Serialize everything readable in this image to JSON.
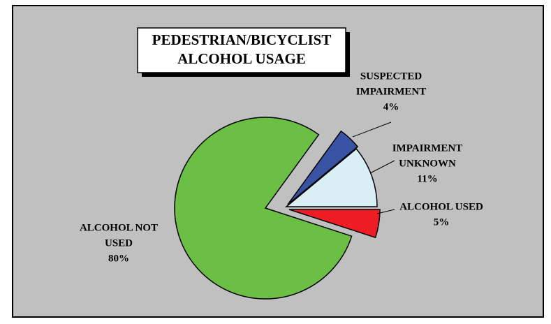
{
  "chart_data": {
    "type": "pie",
    "title": [
      "PEDESTRIAN/BICYCLIST",
      "ALCOHOL USAGE"
    ],
    "categories": [
      [
        "ALCOHOL USED"
      ],
      [
        "ALCOHOL NOT",
        "USED"
      ],
      [
        "SUSPECTED",
        "IMPAIRMENT"
      ],
      [
        "IMPAIRMENT",
        "UNKNOWN"
      ]
    ],
    "values": [
      5,
      80,
      4,
      11
    ],
    "value_labels": [
      "5%",
      "80%",
      "4%",
      "11%"
    ],
    "colors": [
      "#ee1c24",
      "#6cbf45",
      "#3953a4",
      "#d9eef5"
    ]
  }
}
